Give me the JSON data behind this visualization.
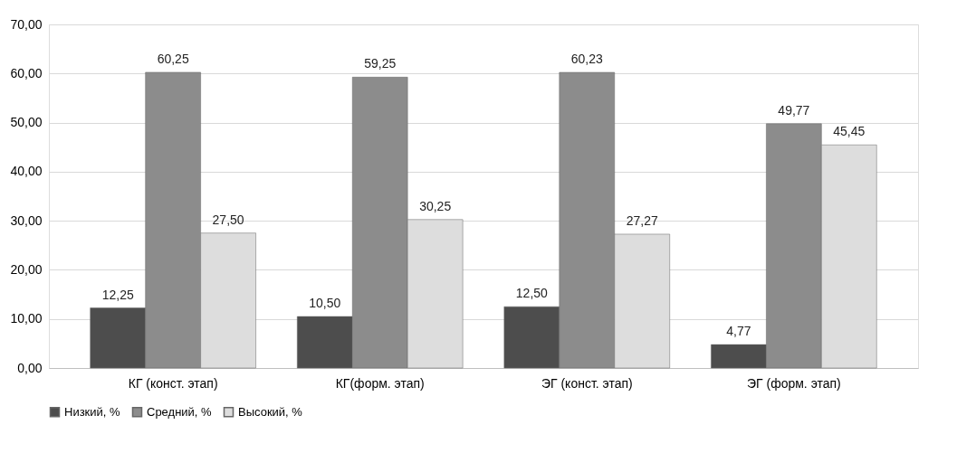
{
  "chart_data": {
    "type": "bar",
    "categories": [
      "КГ (конст. этап)",
      "КГ(форм. этап)",
      "ЭГ (конст. этап)",
      "ЭГ (форм. этап)"
    ],
    "series": [
      {
        "name": "Низкий, %",
        "color": "#4d4d4d",
        "values": [
          12.25,
          10.5,
          12.5,
          4.77
        ],
        "value_labels": [
          "12,25",
          "10,50",
          "12,50",
          "4,77"
        ]
      },
      {
        "name": "Средний, %",
        "color": "#8c8c8c",
        "values": [
          60.25,
          59.25,
          60.23,
          49.77
        ],
        "value_labels": [
          "60,25",
          "59,25",
          "60,23",
          "49,77"
        ]
      },
      {
        "name": "Высокий, %",
        "color": "#dddddd",
        "values": [
          27.5,
          30.25,
          27.27,
          45.45
        ],
        "value_labels": [
          "27,50",
          "30,25",
          "27,27",
          "45,45"
        ]
      }
    ],
    "ylim": [
      0,
      70
    ],
    "yticks": [
      {
        "value": 0,
        "label": "0,00"
      },
      {
        "value": 10,
        "label": "10,00"
      },
      {
        "value": 20,
        "label": "20,00"
      },
      {
        "value": 30,
        "label": "30,00"
      },
      {
        "value": 40,
        "label": "40,00"
      },
      {
        "value": 50,
        "label": "50,00"
      },
      {
        "value": 60,
        "label": "60,00"
      },
      {
        "value": 70,
        "label": "70,00"
      }
    ],
    "grid": "y",
    "legend": "bottom"
  }
}
